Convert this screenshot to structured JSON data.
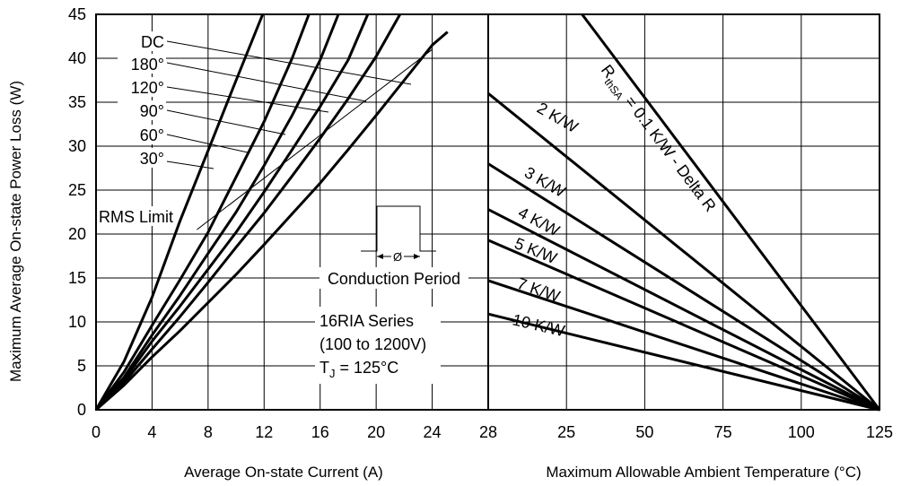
{
  "chart_data": {
    "type": "line",
    "ylabel": "Maximum Average On-state Power Loss (W)",
    "ylim": [
      0,
      45
    ],
    "yticks": [
      "0",
      "5",
      "10",
      "15",
      "20",
      "25",
      "30",
      "35",
      "40",
      "45"
    ],
    "left": {
      "xlabel": "Average On-state Current (A)",
      "xlim": [
        0,
        28
      ],
      "xticks": [
        "0",
        "4",
        "8",
        "12",
        "16",
        "20",
        "24",
        "28"
      ],
      "series": [
        {
          "name": "30°",
          "x": [
            0,
            2,
            4,
            6,
            8,
            10,
            11.9
          ],
          "y": [
            0,
            5.5,
            12.8,
            21.5,
            29.5,
            37.5,
            45
          ]
        },
        {
          "name": "60°",
          "x": [
            0,
            2,
            4,
            6,
            8,
            10,
            12,
            14,
            15.2
          ],
          "y": [
            0,
            4.3,
            9.6,
            14.8,
            20.2,
            26.5,
            32.8,
            40,
            45
          ]
        },
        {
          "name": "90°",
          "x": [
            0,
            2,
            4,
            6,
            8,
            10,
            12,
            14,
            16,
            17.3
          ],
          "y": [
            0,
            3.7,
            8.5,
            13,
            17.8,
            22.5,
            27.8,
            33.5,
            39.8,
            45
          ]
        },
        {
          "name": "120°",
          "x": [
            0,
            2,
            4,
            6,
            8,
            10,
            12,
            14,
            16,
            18,
            19.4
          ],
          "y": [
            0,
            3.4,
            7.8,
            11.8,
            16,
            20.2,
            24.8,
            29.6,
            34.5,
            39.8,
            45
          ]
        },
        {
          "name": "180°",
          "x": [
            0,
            2,
            4,
            6,
            8,
            10,
            12,
            14,
            16,
            18,
            20,
            21.7
          ],
          "y": [
            0,
            3.1,
            6.9,
            10.6,
            14.5,
            18.5,
            22.4,
            26.6,
            30.9,
            35.4,
            40.2,
            45
          ]
        },
        {
          "name": "DC",
          "x": [
            0,
            2,
            4,
            6,
            8,
            10,
            12,
            14,
            16,
            18,
            20,
            22,
            24,
            25.1
          ],
          "y": [
            0,
            2.8,
            6,
            9,
            12.2,
            15.4,
            18.8,
            22.3,
            25.8,
            29.6,
            33.5,
            37.5,
            41.5,
            43
          ]
        }
      ],
      "rms_limit": {
        "name": "RMS Limit",
        "x": [
          7.2,
          24
        ],
        "y": [
          20.5,
          41
        ]
      },
      "labels": {
        "dc": "DC",
        "d180": "180°",
        "d120": "120°",
        "d90": "90°",
        "d60": "60°",
        "d30": "30°",
        "rms": "RMS Limit",
        "conduction": "Conduction Period",
        "phi": "Ø",
        "series_line1": "16RIA Series",
        "series_line2": "(100 to 1200V)",
        "tj_t": "T",
        "tj_sub": "J",
        "tj_rest": " = 125°C"
      }
    },
    "right": {
      "xlabel": "Maximum Allowable Ambient Temperature (°C)",
      "xlim": [
        0,
        125
      ],
      "xticks": [
        "25",
        "50",
        "75",
        "100",
        "125"
      ],
      "series": [
        {
          "name": "R thSA = 0.1 K/W - Delta R",
          "x": [
            30,
            125
          ],
          "y": [
            45,
            0
          ]
        },
        {
          "name": "2 K/W",
          "x": [
            0,
            125
          ],
          "y": [
            36,
            0
          ]
        },
        {
          "name": "3 K/W",
          "x": [
            0,
            125
          ],
          "y": [
            28,
            0
          ]
        },
        {
          "name": "4 K/W",
          "x": [
            0,
            125
          ],
          "y": [
            22.8,
            0
          ]
        },
        {
          "name": "5 K/W",
          "x": [
            0,
            125
          ],
          "y": [
            19.3,
            0
          ]
        },
        {
          "name": "7 K/W",
          "x": [
            0,
            125
          ],
          "y": [
            14.7,
            0
          ]
        },
        {
          "name": "10 K/W",
          "x": [
            0,
            125
          ],
          "y": [
            10.9,
            0
          ]
        }
      ],
      "labels": {
        "r_main": "R",
        "r_sub": "thSA",
        "r_rest": " = 0.1 K/W - Delta R",
        "k2": "2 K/W",
        "k3": "3 K/W",
        "k4": "4 K/W",
        "k5": "5 K/W",
        "k7": "7 K/W",
        "k10": "10 K/W"
      }
    }
  }
}
